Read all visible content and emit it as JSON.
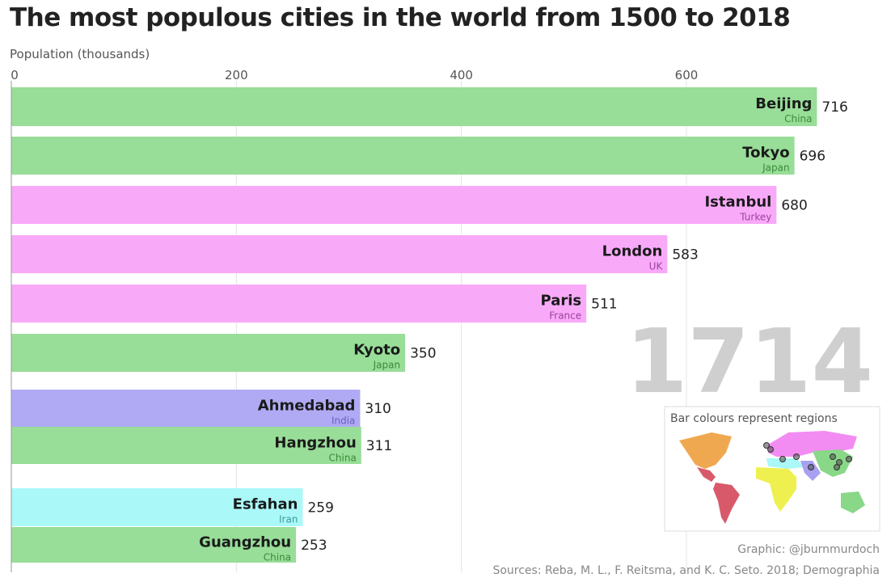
{
  "chart_data": {
    "type": "bar",
    "orientation": "horizontal",
    "title": "The most populous cities in the world from 1500 to 2018",
    "xlabel": "Population (thousands)",
    "xlim": [
      0,
      716
    ],
    "xticks": [
      0,
      200,
      400,
      600
    ],
    "grid": true,
    "year": "1714",
    "bars": [
      {
        "city": "Beijing",
        "country": "China",
        "value": 716,
        "region": "East Asia",
        "color": "#98dd98"
      },
      {
        "city": "Tokyo",
        "country": "Japan",
        "value": 696,
        "region": "East Asia",
        "color": "#98dd98"
      },
      {
        "city": "Istanbul",
        "country": "Turkey",
        "value": 680,
        "region": "Europe",
        "color": "#f8aaf8"
      },
      {
        "city": "London",
        "country": "UK",
        "value": 583,
        "region": "Europe",
        "color": "#f8aaf8"
      },
      {
        "city": "Paris",
        "country": "France",
        "value": 511,
        "region": "Europe",
        "color": "#f8aaf8"
      },
      {
        "city": "Kyoto",
        "country": "Japan",
        "value": 350,
        "region": "East Asia",
        "color": "#98dd98"
      },
      {
        "city": "Ahmedabad",
        "country": "India",
        "value": 310,
        "region": "South Asia",
        "color": "#b0aaf4"
      },
      {
        "city": "Hangzhou",
        "country": "China",
        "value": 311,
        "region": "East Asia",
        "color": "#98dd98"
      },
      {
        "city": "Esfahan",
        "country": "Iran",
        "value": 259,
        "region": "Middle East",
        "color": "#aaf8f8"
      },
      {
        "city": "Guangzhou",
        "country": "China",
        "value": 253,
        "region": "East Asia",
        "color": "#98dd98"
      }
    ],
    "country_label_colors": {
      "#98dd98": "#3a8a3a",
      "#f8aaf8": "#a040a0",
      "#b0aaf4": "#6a60c0",
      "#aaf8f8": "#3a9a9a"
    },
    "legend": {
      "title": "Bar colours represent regions",
      "regions": [
        {
          "name": "North America",
          "color": "#f0a850"
        },
        {
          "name": "Latin America",
          "color": "#d85a6a"
        },
        {
          "name": "Europe",
          "color": "#f28cf2"
        },
        {
          "name": "Middle East",
          "color": "#aaf8f8"
        },
        {
          "name": "Africa",
          "color": "#eef050"
        },
        {
          "name": "South Asia",
          "color": "#a8a0f0"
        },
        {
          "name": "East Asia",
          "color": "#88d888"
        }
      ]
    },
    "credit": "Graphic: @jburnmurdoch",
    "source": "Sources: Reba, M. L., F. Reitsma, and K. C. Seto. 2018; Demographia"
  }
}
